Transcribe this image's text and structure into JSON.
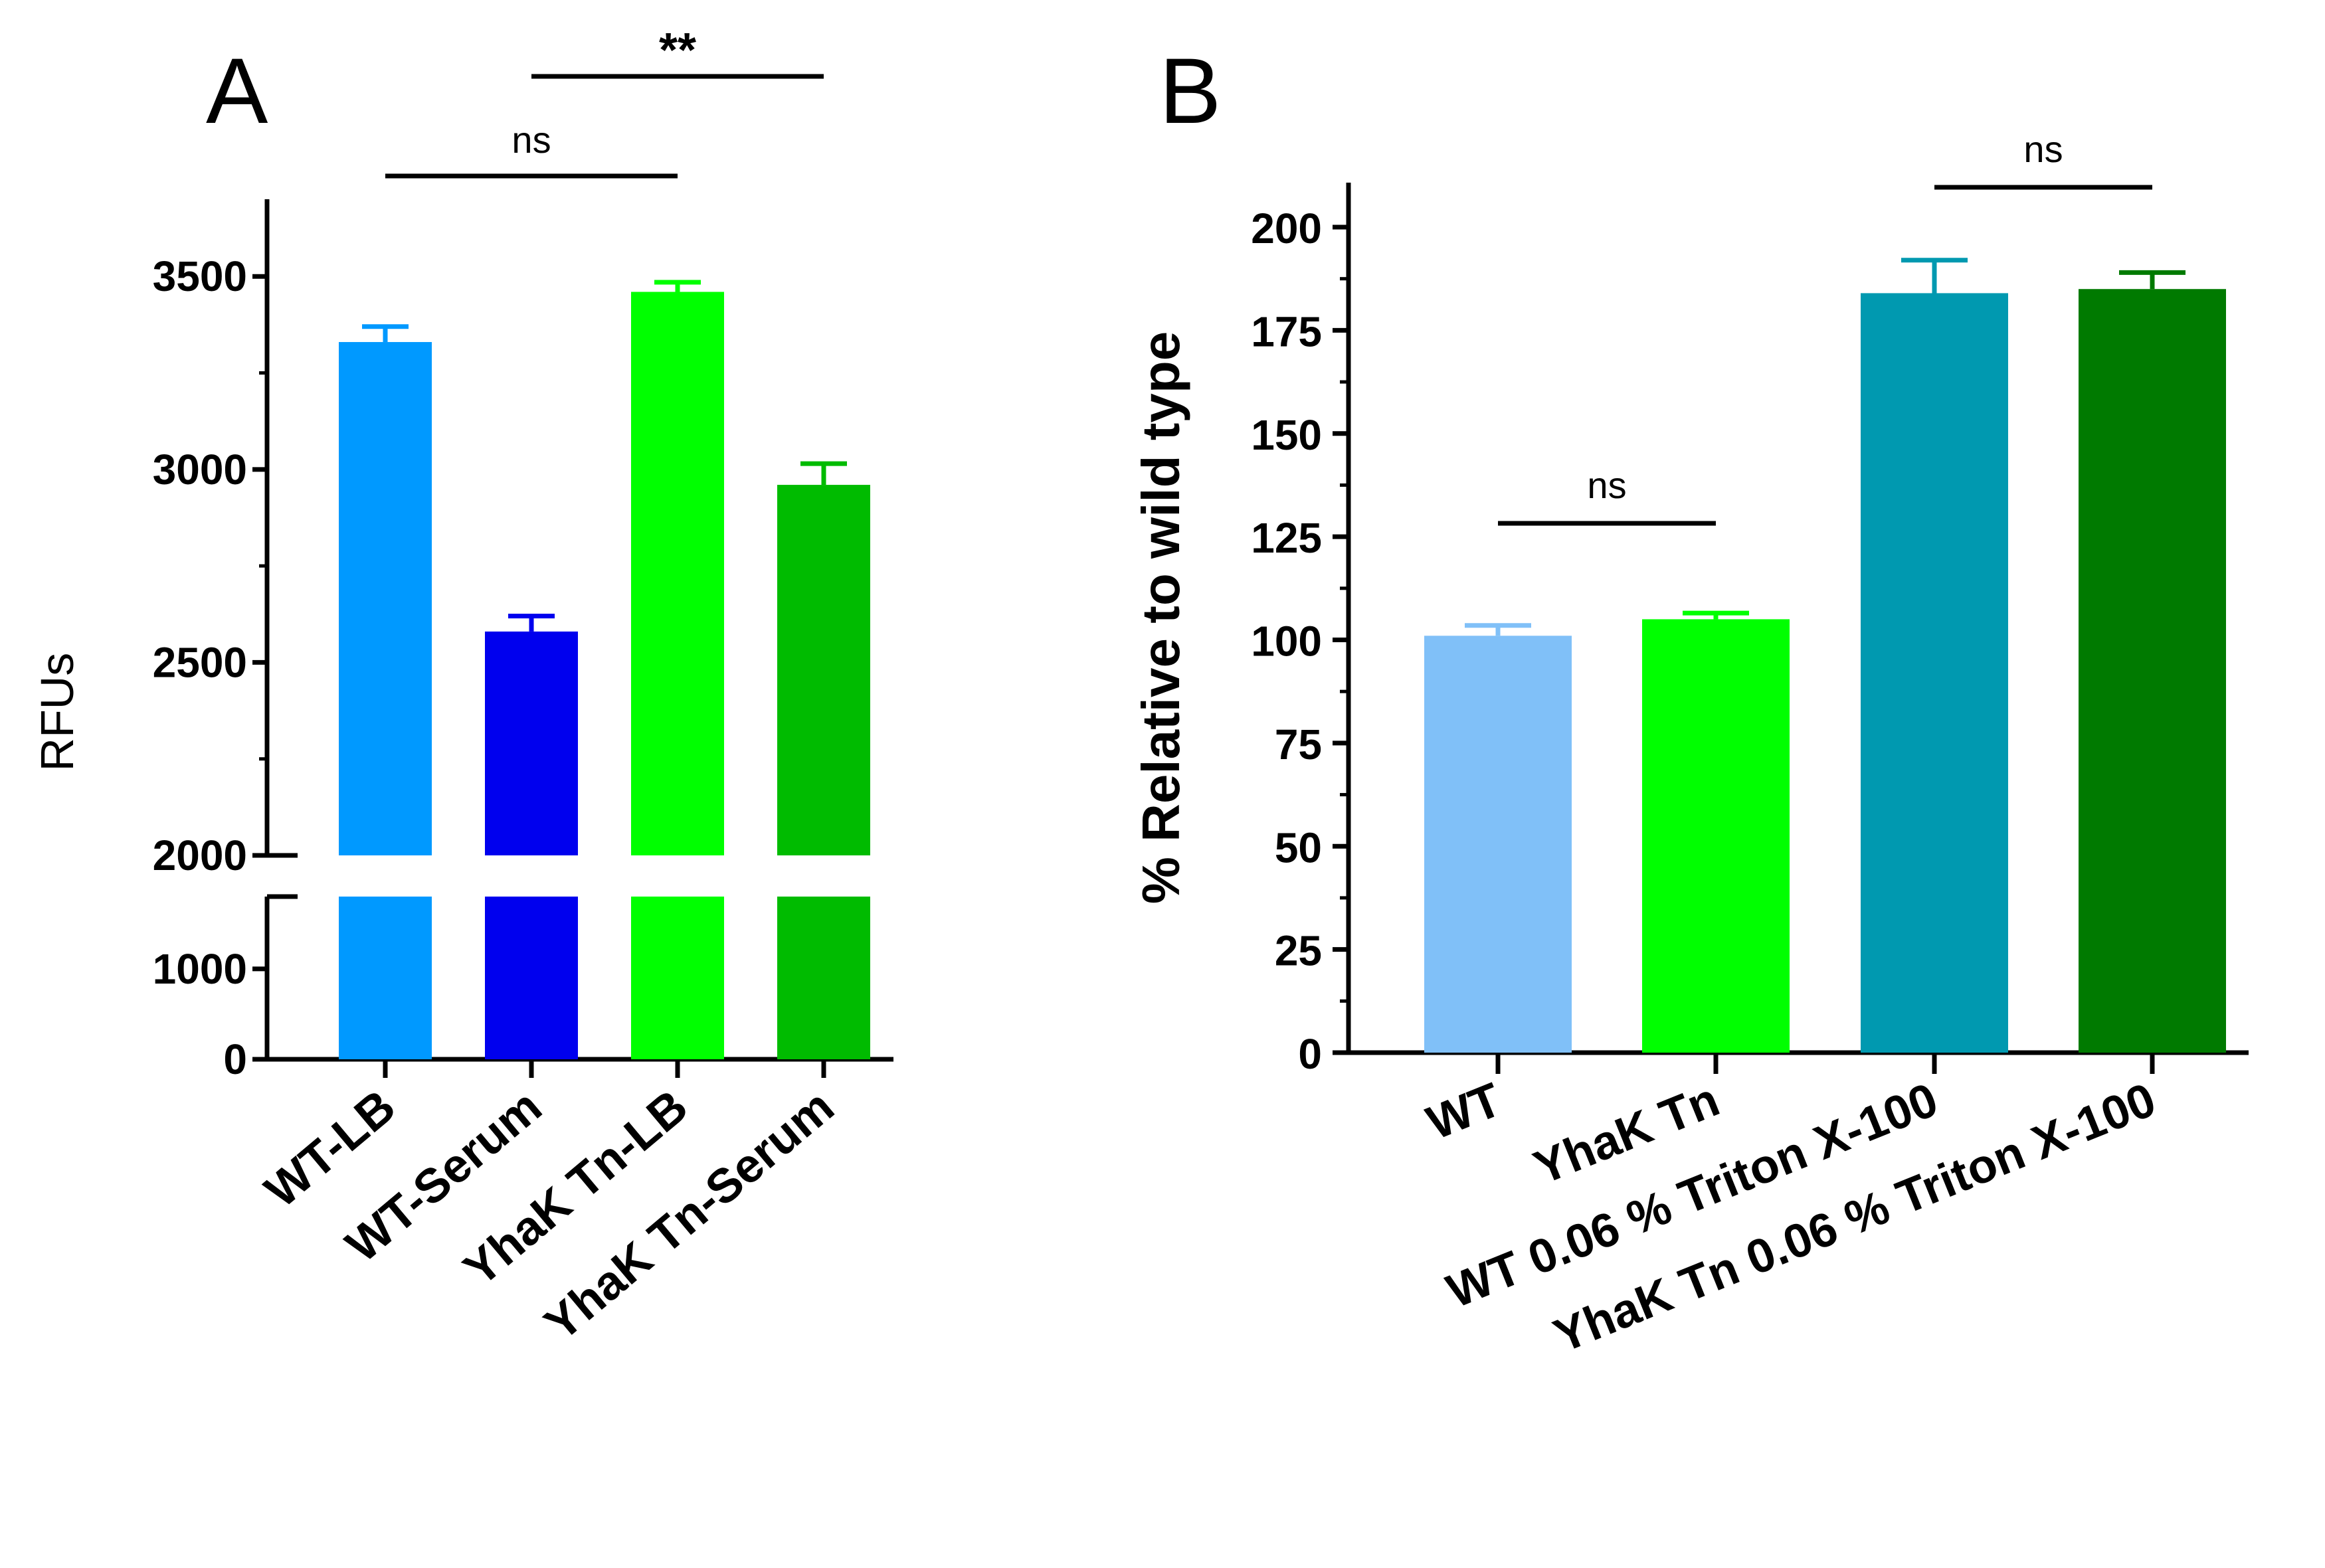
{
  "panels": {
    "a": "A",
    "b": "B"
  },
  "chart_data": [
    {
      "panel": "A",
      "type": "bar",
      "ylabel": "RFUs",
      "xlabel": "",
      "axis_break": [
        1800,
        2000
      ],
      "ylim": [
        0,
        3600
      ],
      "yticks": [
        0,
        1000,
        2000,
        2500,
        3000,
        3500
      ],
      "categories": [
        "WT-LB",
        "WT-Serum",
        "YhaK Tn-LB",
        "YhaK Tn-Serum"
      ],
      "values": [
        3330,
        2580,
        3460,
        2960
      ],
      "errors": [
        40,
        40,
        25,
        55
      ],
      "colors": [
        "#0099ff",
        "#0000ee",
        "#00ff00",
        "#00bb00"
      ],
      "comparisons": [
        {
          "from": 0,
          "to": 2,
          "label": "ns"
        },
        {
          "from": 1,
          "to": 3,
          "label": "**"
        }
      ]
    },
    {
      "panel": "B",
      "type": "bar",
      "ylabel": "% Relative to wild type",
      "xlabel": "",
      "ylim": [
        0,
        210
      ],
      "yticks": [
        0,
        25,
        50,
        75,
        100,
        125,
        150,
        175,
        200
      ],
      "categories": [
        "WT",
        "YhaK Tn",
        "WT 0.06 % Triton X-100",
        "YhaK Tn 0.06 % Triton X-100"
      ],
      "values": [
        101,
        105,
        184,
        185
      ],
      "errors": [
        2.5,
        1.5,
        8,
        4
      ],
      "colors": [
        "#80c0f8",
        "#00ff00",
        "#0099b0",
        "#007a00"
      ],
      "comparisons": [
        {
          "from": 0,
          "to": 1,
          "label": "ns"
        },
        {
          "from": 2,
          "to": 3,
          "label": "ns"
        }
      ]
    }
  ]
}
